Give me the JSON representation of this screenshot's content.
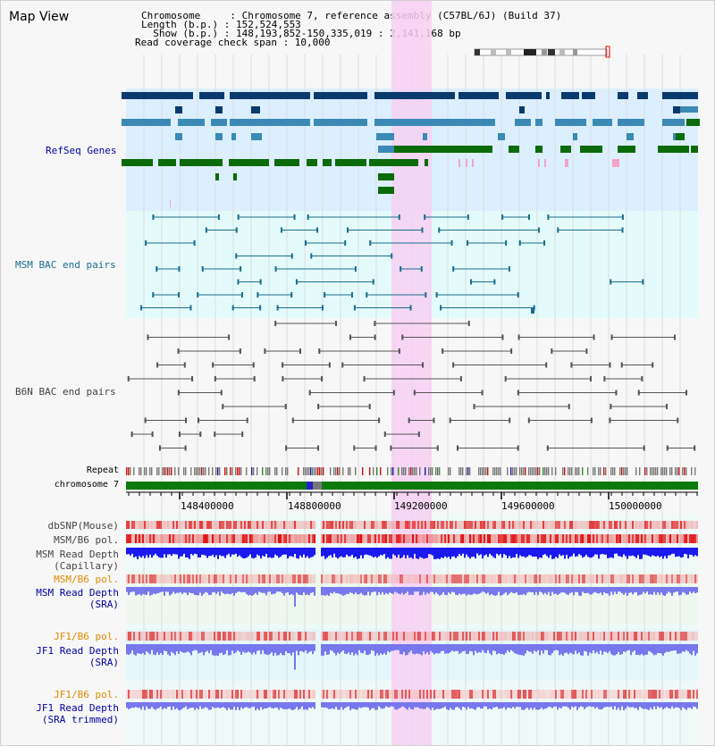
{
  "header": {
    "title": "Map View",
    "chromosome_line": "Chromosome     : Chromosome 7, reference assembly (C57BL/6J) (Build 37)",
    "length_line": "Length (b.p.) : 152,524,553",
    "show_line": "  Show (b.p.) : 148,193,852-150,335,019 : 2,141,168 bp",
    "coverage_line": "Read coverage check span : 10,000"
  },
  "tracks": {
    "refseq": "RefSeq Genes",
    "msm_bac": "MSM BAC end pairs",
    "b6n_bac": "B6N BAC end pairs",
    "repeat": "Repeat",
    "chromosome": "chromosome 7",
    "dbsnp": "dbSNP(Mouse)",
    "msm_b6_pol": "MSM/B6 pol.",
    "msm_depth_cap_1": "MSM Read Depth",
    "msm_depth_cap_2": "(Capillary)",
    "msm_b6_pol_sra": "MSM/B6 pol.",
    "msm_depth_sra_1": "MSM Read Depth",
    "msm_depth_sra_2": "(SRA)",
    "jf1_b6_pol": "JF1/B6 pol.",
    "jf1_depth_1": "JF1 Read Depth",
    "jf1_depth_2": "(SRA)",
    "jf1_b6_pol_t": "JF1/B6 pol.",
    "jf1_depth_t_1": "JF1 Read Depth",
    "jf1_depth_t_2": "(SRA trimmed)"
  },
  "ruler": {
    "ticks": [
      "148400000",
      "148800000",
      "149200000",
      "149600000",
      "150000000"
    ]
  },
  "colors": {
    "refseq_bg": "#dcefff",
    "bac_bg": "#e3fbfb",
    "highlight": "#f7d0f2",
    "dark_gene": "#0b3a6e",
    "mid_gene": "#3a8ab5",
    "green_gene": "#0b6b0b",
    "label_blue": "#0000a0",
    "label_orange": "#e08a00",
    "label_teal": "#1a6e8e",
    "depth_blue": "#1a1aef",
    "pale_blue": "#7777ee"
  }
}
